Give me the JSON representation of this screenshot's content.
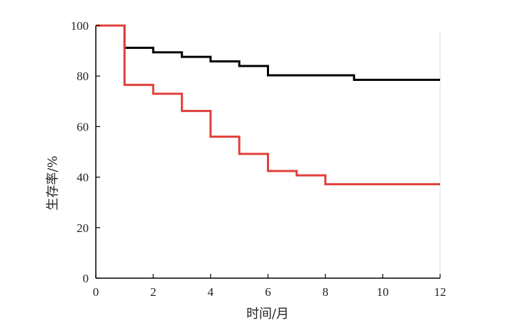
{
  "chart_data": {
    "type": "line",
    "step": true,
    "xlabel": "时间/月",
    "ylabel": "生存率/%",
    "xlim": [
      0,
      12
    ],
    "ylim": [
      0,
      100
    ],
    "xticks": [
      0,
      2,
      4,
      6,
      8,
      10,
      12
    ],
    "yticks": [
      0,
      20,
      40,
      60,
      80,
      100
    ],
    "grid": false,
    "series": [
      {
        "color": "#000000",
        "points": [
          [
            0,
            100
          ],
          [
            1,
            91.2
          ],
          [
            2,
            89.4
          ],
          [
            3,
            87.6
          ],
          [
            4,
            85.8
          ],
          [
            5,
            84
          ],
          [
            6,
            80.3
          ],
          [
            9,
            78.5
          ],
          [
            12,
            78.5
          ]
        ]
      },
      {
        "color": "#e0403a",
        "points": [
          [
            0,
            100
          ],
          [
            1,
            76.5
          ],
          [
            2,
            73
          ],
          [
            3,
            66.2
          ],
          [
            4,
            56
          ],
          [
            5,
            49.2
          ],
          [
            6,
            42.4
          ],
          [
            7,
            40.7
          ],
          [
            8,
            37.2
          ],
          [
            12,
            37.2
          ]
        ]
      }
    ]
  }
}
